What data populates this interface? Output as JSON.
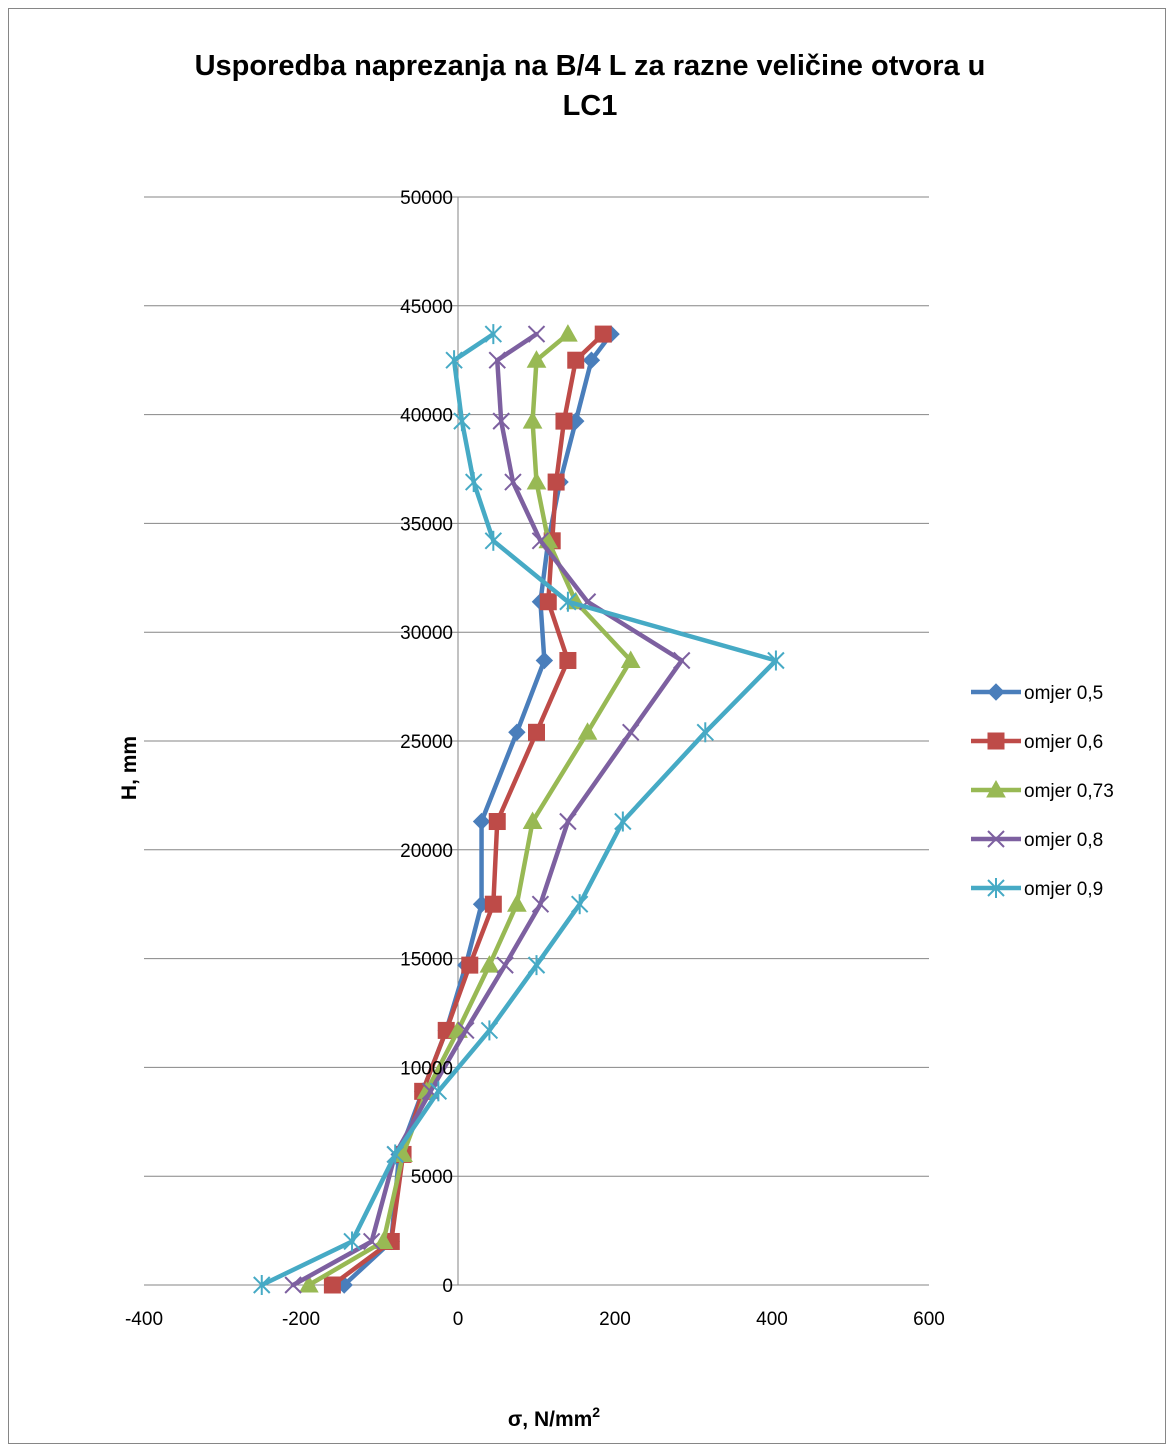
{
  "chart_data": {
    "type": "line",
    "title_line1": "Usporedba naprezanja na B/4 L za razne veličine otvora u",
    "title_line2": "LC1",
    "xlabel_main": "σ, N/mm",
    "xlabel_sup": "2",
    "ylabel": "H, mm",
    "xlim": [
      -400,
      600
    ],
    "ylim": [
      0,
      50000
    ],
    "x_ticks": [
      -400,
      -200,
      0,
      200,
      400,
      600
    ],
    "y_ticks": [
      0,
      5000,
      10000,
      15000,
      20000,
      25000,
      30000,
      35000,
      40000,
      45000,
      50000
    ],
    "grid": "horizontal",
    "legend_position": "right",
    "H": [
      0,
      2000,
      6000,
      8900,
      11700,
      14700,
      17500,
      21300,
      25400,
      28700,
      31400,
      34200,
      36900,
      39700,
      42500,
      43700
    ],
    "series": [
      {
        "name": "omjer 0,5",
        "color": "#4A7EBB",
        "marker": "diamond",
        "values": [
          -145,
          -85,
          -75,
          -45,
          -15,
          10,
          30,
          30,
          75,
          110,
          105,
          115,
          130,
          150,
          170,
          195
        ]
      },
      {
        "name": "omjer 0,6",
        "color": "#BE4B48",
        "marker": "square",
        "values": [
          -160,
          -85,
          -70,
          -45,
          -15,
          15,
          45,
          50,
          100,
          140,
          115,
          120,
          125,
          135,
          150,
          185
        ]
      },
      {
        "name": "omjer 0,73",
        "color": "#98B954",
        "marker": "triangle",
        "values": [
          -190,
          -95,
          -70,
          -40,
          0,
          40,
          75,
          95,
          165,
          220,
          150,
          115,
          100,
          95,
          100,
          140
        ]
      },
      {
        "name": "omjer 0,8",
        "color": "#7D60A0",
        "marker": "x",
        "values": [
          -210,
          -110,
          -80,
          -35,
          10,
          60,
          105,
          140,
          220,
          285,
          165,
          105,
          70,
          55,
          50,
          100
        ]
      },
      {
        "name": "omjer 0,9",
        "color": "#46AAC5",
        "marker": "asterisk",
        "values": [
          -250,
          -135,
          -80,
          -25,
          40,
          100,
          155,
          210,
          315,
          405,
          140,
          45,
          20,
          5,
          -5,
          45
        ]
      }
    ]
  }
}
